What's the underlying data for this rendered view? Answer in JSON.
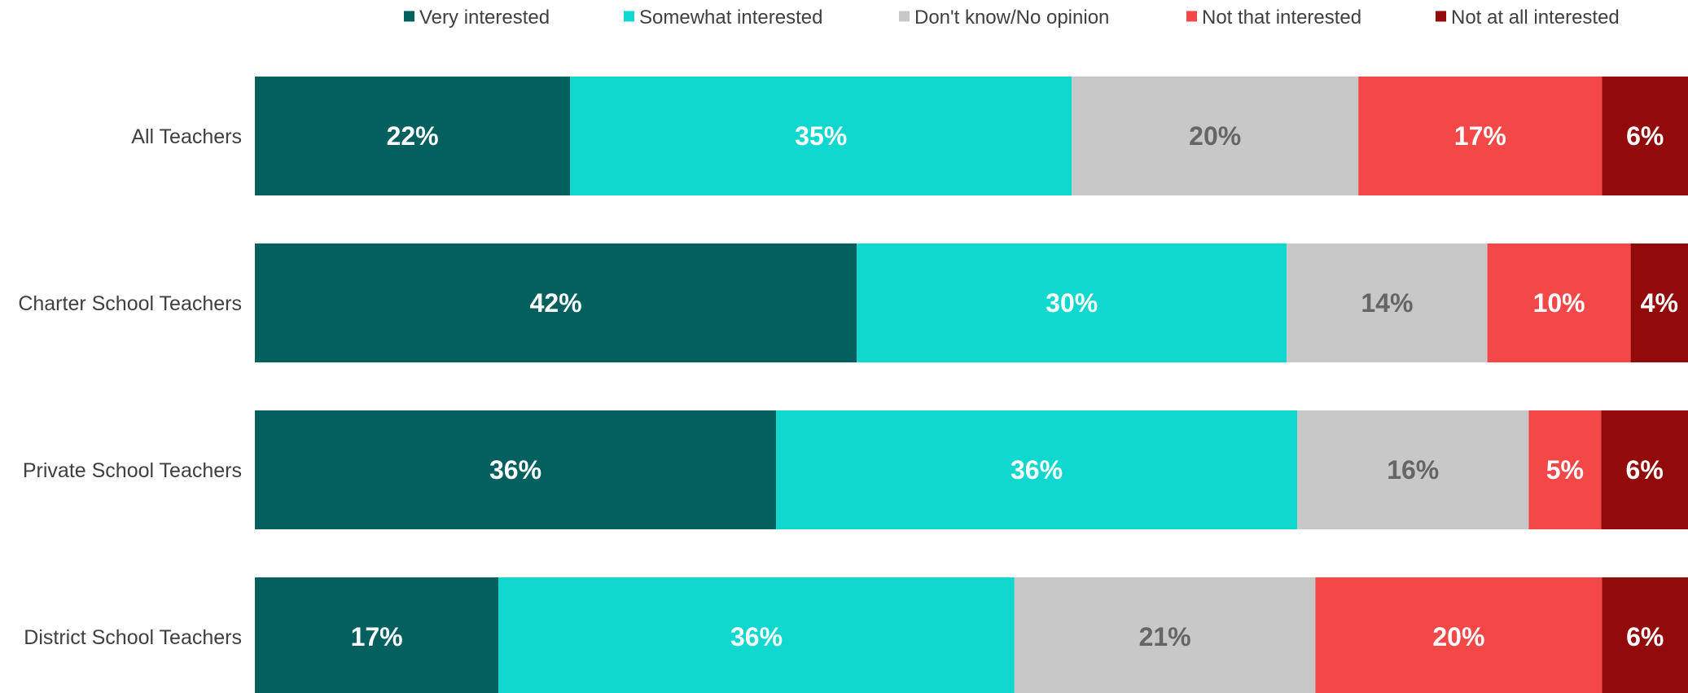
{
  "chart_data": {
    "type": "bar",
    "orientation": "horizontal",
    "stacked": true,
    "normalized": true,
    "categories": [
      "All Teachers",
      "Charter School Teachers",
      "Private School Teachers",
      "District School Teachers"
    ],
    "series": [
      {
        "name": "Very interested",
        "color": "#03605f",
        "label_color": "#ffffff",
        "values": [
          22,
          42,
          36,
          17
        ]
      },
      {
        "name": "Somewhat interested",
        "color": "#10d8cf",
        "label_color": "#ffffff",
        "values": [
          35,
          30,
          36,
          36
        ]
      },
      {
        "name": "Don't know/No opinion",
        "color": "#c8c8c8",
        "label_color": "#666666",
        "values": [
          20,
          14,
          16,
          21
        ]
      },
      {
        "name": "Not that interested",
        "color": "#f44748",
        "label_color": "#ffffff",
        "values": [
          17,
          10,
          5,
          20
        ]
      },
      {
        "name": "Not at all interested",
        "color": "#920a0a",
        "label_color": "#ffffff",
        "values": [
          6,
          4,
          6,
          6
        ]
      }
    ],
    "value_suffix": "%",
    "legend_position": "top",
    "grid": false,
    "title": "",
    "xlabel": "",
    "ylabel": ""
  }
}
